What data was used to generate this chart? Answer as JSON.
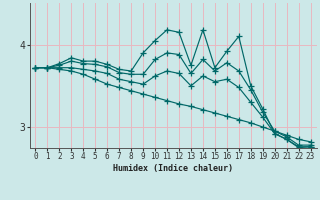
{
  "xlabel": "Humidex (Indice chaleur)",
  "bg_color": "#cce8e8",
  "grid_color": "#e8b8c0",
  "line_color": "#006868",
  "xlim": [
    -0.5,
    23.5
  ],
  "ylim": [
    2.75,
    4.5
  ],
  "yticks": [
    3,
    4
  ],
  "xticks": [
    0,
    1,
    2,
    3,
    4,
    5,
    6,
    7,
    8,
    9,
    10,
    11,
    12,
    13,
    14,
    15,
    16,
    17,
    18,
    19,
    20,
    21,
    22,
    23
  ],
  "lines": [
    {
      "x": [
        0,
        1,
        2,
        3,
        4,
        5,
        6,
        7,
        8,
        9,
        10,
        11,
        12,
        13,
        14,
        15,
        16,
        17,
        18,
        19,
        20,
        21,
        22,
        23
      ],
      "y": [
        3.72,
        3.72,
        3.77,
        3.84,
        3.8,
        3.8,
        3.76,
        3.7,
        3.68,
        3.9,
        4.05,
        4.18,
        4.15,
        3.75,
        4.18,
        3.72,
        3.92,
        4.1,
        3.5,
        3.22,
        2.92,
        2.85,
        2.75,
        2.76
      ]
    },
    {
      "x": [
        0,
        1,
        2,
        3,
        4,
        5,
        6,
        7,
        8,
        9,
        10,
        11,
        12,
        13,
        14,
        15,
        16,
        17,
        18,
        19,
        20,
        21,
        22,
        23
      ],
      "y": [
        3.72,
        3.72,
        3.75,
        3.8,
        3.77,
        3.76,
        3.73,
        3.66,
        3.64,
        3.64,
        3.82,
        3.9,
        3.88,
        3.65,
        3.82,
        3.68,
        3.78,
        3.68,
        3.45,
        3.18,
        2.95,
        2.88,
        2.78,
        2.78
      ]
    },
    {
      "x": [
        0,
        1,
        2,
        3,
        4,
        5,
        6,
        7,
        8,
        9,
        10,
        11,
        12,
        13,
        14,
        15,
        16,
        17,
        18,
        19,
        20,
        21,
        22,
        23
      ],
      "y": [
        3.72,
        3.72,
        3.72,
        3.72,
        3.7,
        3.68,
        3.65,
        3.58,
        3.55,
        3.52,
        3.62,
        3.68,
        3.65,
        3.5,
        3.62,
        3.55,
        3.58,
        3.48,
        3.3,
        3.12,
        2.92,
        2.85,
        2.76,
        2.76
      ]
    },
    {
      "x": [
        0,
        1,
        2,
        3,
        4,
        5,
        6,
        7,
        8,
        9,
        10,
        11,
        12,
        13,
        14,
        15,
        16,
        17,
        18,
        19,
        20,
        21,
        22,
        23
      ],
      "y": [
        3.72,
        3.72,
        3.7,
        3.68,
        3.64,
        3.58,
        3.52,
        3.48,
        3.44,
        3.4,
        3.36,
        3.32,
        3.28,
        3.25,
        3.21,
        3.17,
        3.13,
        3.09,
        3.05,
        3.0,
        2.95,
        2.9,
        2.85,
        2.82
      ]
    }
  ]
}
